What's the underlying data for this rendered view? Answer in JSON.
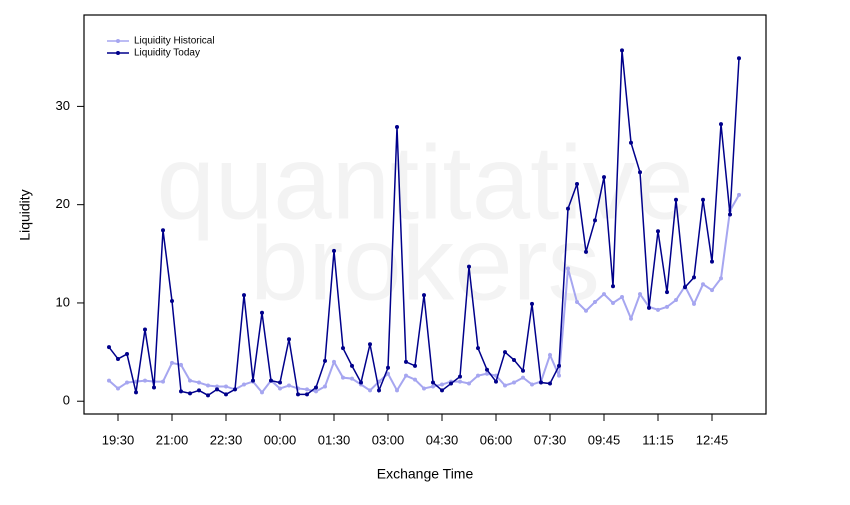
{
  "chart_data": {
    "type": "line",
    "watermark": [
      "quantitative",
      "brokers"
    ],
    "x_label": "Exchange Time",
    "y_label": "Liquidity",
    "categories": [
      null,
      "19:30",
      null,
      null,
      null,
      null,
      null,
      "21:00",
      null,
      null,
      null,
      null,
      null,
      "22:30",
      null,
      null,
      null,
      null,
      null,
      "00:00",
      null,
      null,
      null,
      null,
      null,
      "01:30",
      null,
      null,
      null,
      null,
      null,
      "03:00",
      null,
      null,
      null,
      null,
      null,
      "04:30",
      null,
      null,
      null,
      null,
      null,
      "06:00",
      null,
      null,
      null,
      null,
      null,
      "07:30",
      null,
      null,
      null,
      null,
      null,
      "09:45",
      null,
      null,
      null,
      null,
      null,
      "11:15",
      null,
      null,
      null,
      null,
      null,
      "12:45",
      null,
      null,
      null
    ],
    "series": [
      {
        "name": "Liquidity Historical",
        "color": "#a6a6f0",
        "values": [
          2.1,
          1.3,
          1.9,
          2.0,
          2.1,
          2.0,
          2.0,
          3.9,
          3.7,
          2.1,
          1.9,
          1.6,
          1.5,
          1.5,
          1.2,
          1.7,
          2.0,
          0.9,
          2.1,
          1.3,
          1.6,
          1.3,
          1.2,
          1.0,
          1.5,
          4.0,
          2.4,
          2.3,
          1.7,
          1.1,
          2.0,
          2.8,
          1.1,
          2.6,
          2.2,
          1.3,
          1.5,
          1.7,
          2.0,
          2.0,
          1.8,
          2.6,
          2.8,
          2.6,
          1.6,
          1.9,
          2.4,
          1.7,
          2.0,
          4.7,
          2.6,
          13.5,
          10.1,
          9.2,
          10.1,
          10.9,
          10.0,
          10.6,
          8.4,
          10.9,
          9.6,
          9.3,
          9.6,
          10.3,
          11.7,
          9.9,
          11.9,
          11.3,
          12.5,
          19.4,
          21.0
        ]
      },
      {
        "name": "Liquidity Today",
        "color": "#00008b",
        "values": [
          5.5,
          4.3,
          4.8,
          0.9,
          7.3,
          1.4,
          17.4,
          10.2,
          1.0,
          0.8,
          1.1,
          0.6,
          1.2,
          0.7,
          1.2,
          10.8,
          2.1,
          9.0,
          2.1,
          1.9,
          6.3,
          0.7,
          0.7,
          1.4,
          4.1,
          15.3,
          5.4,
          3.6,
          1.9,
          5.8,
          1.1,
          3.4,
          27.9,
          4.0,
          3.6,
          10.8,
          1.9,
          1.1,
          1.8,
          2.5,
          13.7,
          5.4,
          3.2,
          2.0,
          5.0,
          4.2,
          3.1,
          9.9,
          1.9,
          1.8,
          3.6,
          19.6,
          22.1,
          15.2,
          18.4,
          22.8,
          11.7,
          35.7,
          26.3,
          23.3,
          9.5,
          17.3,
          11.1,
          20.5,
          11.6,
          12.6,
          20.5,
          14.2,
          28.2,
          19.0,
          34.9
        ]
      }
    ],
    "ylim": [
      -1.3,
      39.3
    ],
    "yticks": [
      0,
      10,
      20,
      30
    ],
    "legend": "top-left"
  }
}
